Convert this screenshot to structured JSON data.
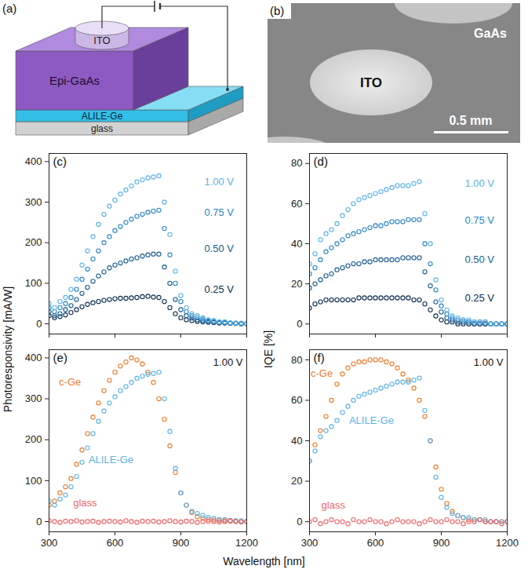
{
  "schematic": {
    "panel": "(a)",
    "electrode": "ITO",
    "layers": [
      "Epi-GaAs",
      "ALILE-Ge",
      "glass"
    ]
  },
  "micrograph": {
    "panel": "(b)",
    "substrate": "GaAs",
    "contact": "ITO",
    "scale_bar": "0.5 mm"
  },
  "xlabel": "Wavelength [nm]",
  "chart_data": [
    {
      "type": "scatter",
      "title": "(c)",
      "ylabel": "Photoresponsivity [mA/W]",
      "marker": "circle",
      "tick_labels": "y",
      "x": [
        300,
        325,
        350,
        375,
        400,
        425,
        450,
        475,
        500,
        525,
        550,
        575,
        600,
        625,
        650,
        675,
        700,
        725,
        750,
        775,
        800,
        825,
        850,
        875,
        900,
        925,
        950,
        975,
        1000,
        1025,
        1050,
        1075,
        1100,
        1125,
        1150,
        1175,
        1200
      ],
      "xlim": [
        300,
        1200
      ],
      "xticks": [
        300,
        600,
        900,
        1200
      ],
      "ylim": [
        -25,
        420
      ],
      "yticks": [
        0,
        100,
        200,
        300,
        400
      ],
      "series": [
        {
          "name": "0.25 V",
          "color": "#0d2f4f",
          "values": [
            20,
            15,
            18,
            22,
            28,
            35,
            42,
            48,
            52,
            55,
            58,
            60,
            62,
            63,
            63,
            64,
            65,
            67,
            68,
            66,
            65,
            55,
            40,
            25,
            15,
            10,
            8,
            6,
            5,
            4,
            3,
            2,
            2,
            1,
            1,
            0,
            0
          ]
        },
        {
          "name": "0.50 V",
          "color": "#1b5e92",
          "values": [
            30,
            20,
            25,
            35,
            45,
            60,
            75,
            90,
            105,
            118,
            128,
            138,
            145,
            150,
            155,
            160,
            163,
            167,
            170,
            172,
            172,
            140,
            100,
            60,
            35,
            20,
            14,
            10,
            8,
            6,
            4,
            3,
            3,
            2,
            1,
            1,
            0
          ]
        },
        {
          "name": "0.75 V",
          "color": "#2a86c6",
          "values": [
            40,
            30,
            40,
            50,
            65,
            85,
            110,
            135,
            160,
            180,
            200,
            215,
            230,
            240,
            250,
            258,
            265,
            270,
            275,
            278,
            280,
            235,
            170,
            100,
            55,
            30,
            20,
            15,
            12,
            8,
            6,
            4,
            4,
            2,
            2,
            1,
            0
          ]
        },
        {
          "name": "1.00 V",
          "color": "#5ab3ea",
          "values": [
            50,
            40,
            55,
            65,
            85,
            110,
            145,
            180,
            215,
            245,
            270,
            290,
            305,
            320,
            330,
            340,
            350,
            355,
            360,
            362,
            365,
            300,
            220,
            130,
            70,
            40,
            25,
            20,
            15,
            10,
            8,
            5,
            5,
            3,
            2,
            2,
            0
          ]
        }
      ]
    },
    {
      "type": "scatter",
      "title": "(d)",
      "ylabel": "IQE [%]",
      "marker": "circle",
      "tick_labels": "y",
      "x": [
        300,
        325,
        350,
        375,
        400,
        425,
        450,
        475,
        500,
        525,
        550,
        575,
        600,
        625,
        650,
        675,
        700,
        725,
        750,
        775,
        800,
        825,
        850,
        875,
        900,
        925,
        950,
        975,
        1000,
        1025,
        1050,
        1075,
        1100,
        1125,
        1150,
        1175,
        1200
      ],
      "xlim": [
        300,
        1200
      ],
      "xticks": [
        300,
        600,
        900,
        1200
      ],
      "ylim": [
        -5,
        85
      ],
      "yticks": [
        0,
        20,
        40,
        60,
        80
      ],
      "series": [
        {
          "name": "0.25 V",
          "color": "#0d2f4f",
          "values": [
            8,
            10,
            11,
            12,
            12,
            12,
            12,
            12,
            12,
            13,
            13,
            13,
            13,
            13,
            13,
            13,
            13,
            13,
            13,
            12,
            12,
            10,
            7,
            4,
            2,
            1,
            1,
            0,
            0,
            0,
            0,
            0,
            0,
            0,
            0,
            0,
            0
          ]
        },
        {
          "name": "0.50 V",
          "color": "#1b5e92",
          "values": [
            18,
            20,
            22,
            24,
            25,
            27,
            28,
            29,
            30,
            30,
            31,
            31,
            32,
            32,
            32,
            32,
            32,
            33,
            33,
            33,
            33,
            26,
            19,
            11,
            6,
            3,
            2,
            1,
            1,
            1,
            0,
            0,
            0,
            0,
            0,
            0,
            0
          ]
        },
        {
          "name": "0.75 V",
          "color": "#2a86c6",
          "values": [
            25,
            28,
            32,
            36,
            38,
            40,
            42,
            44,
            45,
            46,
            47,
            48,
            49,
            49,
            50,
            51,
            51,
            51,
            52,
            52,
            52,
            40,
            30,
            17,
            9,
            5,
            3,
            2,
            2,
            1,
            1,
            1,
            1,
            0,
            0,
            0,
            0
          ]
        },
        {
          "name": "1.00 V",
          "color": "#5ab3ea",
          "values": [
            30,
            35,
            42,
            45,
            47,
            50,
            54,
            57,
            60,
            62,
            63,
            64,
            65,
            66,
            67,
            68,
            69,
            69,
            69,
            70,
            71,
            55,
            40,
            22,
            12,
            7,
            4,
            3,
            2,
            2,
            1,
            1,
            1,
            0,
            0,
            0,
            0
          ]
        }
      ]
    },
    {
      "type": "scatter",
      "title": "(e)",
      "marker": "circle",
      "annotations": [
        "1.00 V"
      ],
      "x": [
        300,
        325,
        350,
        375,
        400,
        425,
        450,
        475,
        500,
        525,
        550,
        575,
        600,
        625,
        650,
        675,
        700,
        725,
        750,
        775,
        800,
        825,
        850,
        875,
        900,
        925,
        950,
        975,
        1000,
        1025,
        1050,
        1075,
        1100,
        1125,
        1150,
        1175,
        1200
      ],
      "xlim": [
        300,
        1200
      ],
      "xticks": [
        300,
        600,
        900,
        1200
      ],
      "ylim": [
        -25,
        420
      ],
      "yticks": [
        0,
        100,
        200,
        300,
        400
      ],
      "series": [
        {
          "name": "c-Ge",
          "color": "#f07b2a",
          "values": [
            40,
            50,
            70,
            85,
            105,
            140,
            175,
            215,
            255,
            290,
            320,
            345,
            365,
            380,
            390,
            400,
            395,
            385,
            365,
            340,
            300,
            250,
            185,
            120,
            70,
            40,
            22,
            12,
            8,
            5,
            4,
            3,
            2,
            1,
            1,
            0,
            0
          ]
        },
        {
          "name": "ALILE-Ge",
          "color": "#5ab3ea",
          "values": [
            50,
            40,
            55,
            65,
            85,
            110,
            145,
            180,
            215,
            245,
            270,
            290,
            305,
            320,
            330,
            340,
            350,
            355,
            360,
            362,
            365,
            300,
            220,
            130,
            70,
            40,
            25,
            20,
            15,
            10,
            8,
            5,
            5,
            3,
            2,
            2,
            0
          ]
        },
        {
          "name": "glass",
          "color": "#f0646a",
          "values": [
            2,
            0,
            -2,
            1,
            0,
            2,
            -1,
            0,
            1,
            -2,
            0,
            1,
            0,
            -1,
            2,
            0,
            -2,
            1,
            0,
            1,
            -1,
            0,
            2,
            0,
            -1,
            1,
            0,
            -2,
            0,
            1,
            0,
            -1,
            0,
            2,
            0,
            -1,
            0
          ]
        }
      ]
    },
    {
      "type": "scatter",
      "title": "(f)",
      "marker": "circle",
      "annotations": [
        "1.00 V"
      ],
      "x": [
        300,
        325,
        350,
        375,
        400,
        425,
        450,
        475,
        500,
        525,
        550,
        575,
        600,
        625,
        650,
        675,
        700,
        725,
        750,
        775,
        800,
        825,
        850,
        875,
        900,
        925,
        950,
        975,
        1000,
        1025,
        1050,
        1075,
        1100,
        1125,
        1150,
        1175,
        1200
      ],
      "xlim": [
        300,
        1200
      ],
      "xticks": [
        300,
        600,
        900,
        1200
      ],
      "ylim": [
        -5,
        85
      ],
      "yticks": [
        0,
        20,
        40,
        60,
        80
      ],
      "series": [
        {
          "name": "c-Ge",
          "color": "#f07b2a",
          "values": [
            30,
            38,
            45,
            52,
            60,
            68,
            73,
            76,
            78,
            79,
            79,
            80,
            80,
            80,
            79,
            78,
            76,
            73,
            70,
            66,
            60,
            52,
            40,
            27,
            16,
            9,
            5,
            3,
            2,
            1,
            1,
            1,
            0,
            0,
            0,
            0,
            0
          ]
        },
        {
          "name": "ALILE-Ge",
          "color": "#5ab3ea",
          "values": [
            30,
            35,
            42,
            45,
            47,
            50,
            54,
            57,
            60,
            62,
            63,
            64,
            65,
            66,
            67,
            68,
            69,
            69,
            69,
            70,
            71,
            55,
            40,
            22,
            12,
            7,
            4,
            3,
            2,
            2,
            1,
            1,
            1,
            0,
            0,
            0,
            0
          ]
        },
        {
          "name": "glass",
          "color": "#f0646a",
          "values": [
            0,
            1,
            -1,
            0,
            1,
            0,
            0,
            -1,
            1,
            0,
            0,
            1,
            0,
            0,
            -1,
            0,
            1,
            0,
            0,
            0,
            -1,
            0,
            1,
            0,
            0,
            1,
            0,
            0,
            -1,
            0,
            0,
            1,
            0,
            0,
            0,
            -1,
            0
          ]
        }
      ]
    }
  ]
}
